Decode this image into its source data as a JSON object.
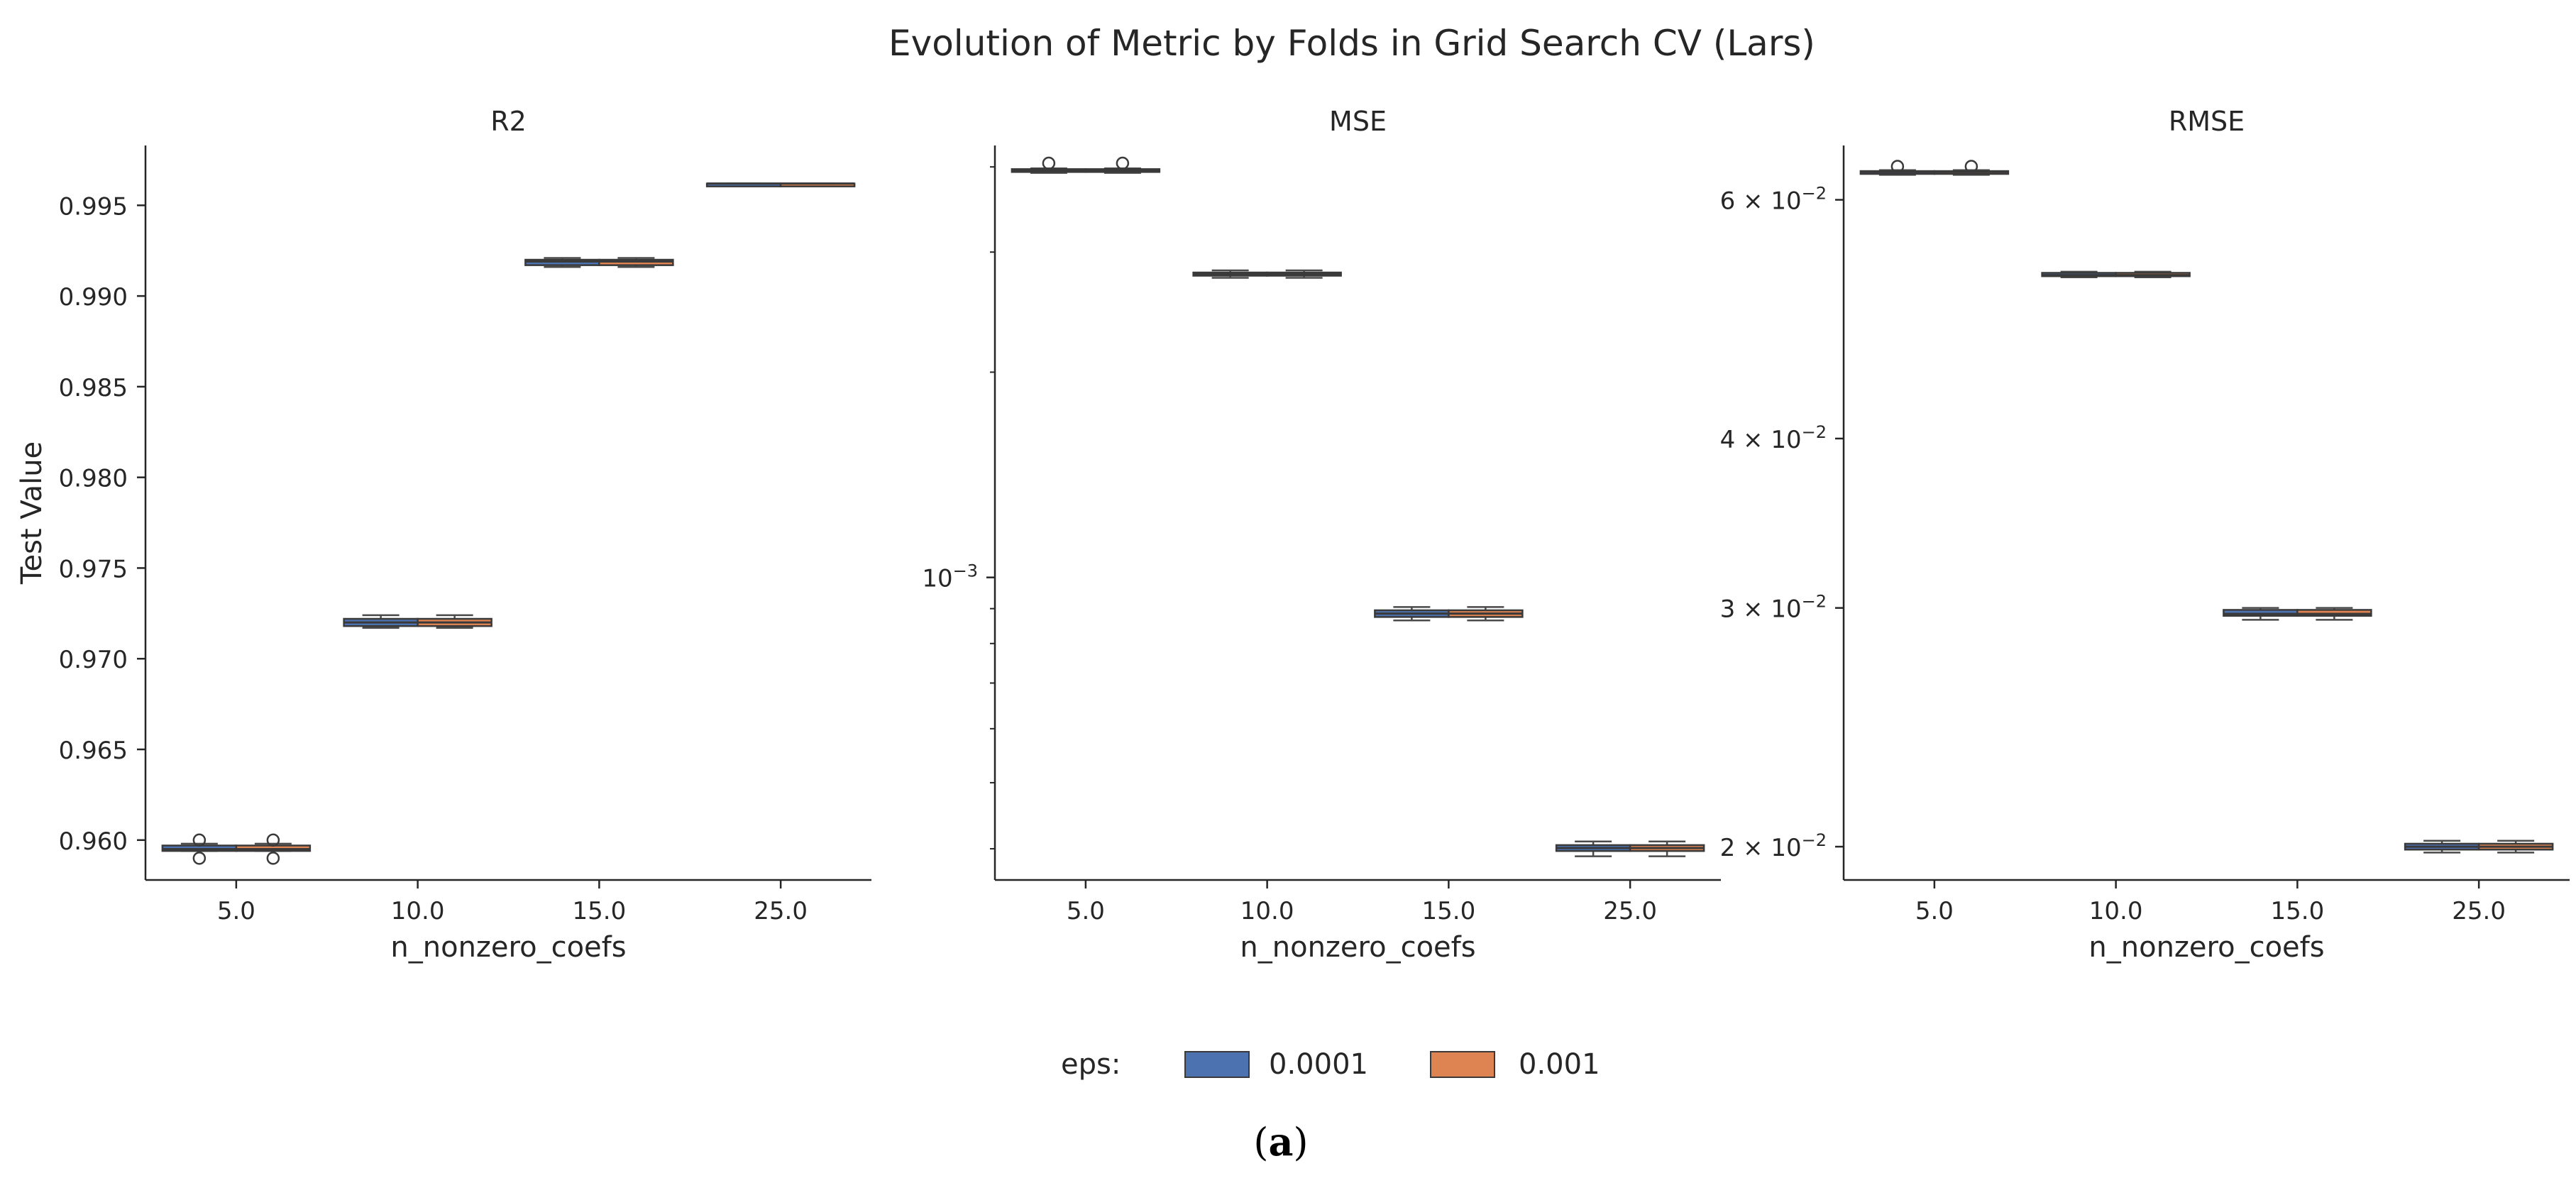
{
  "figure": {
    "title": "Evolution of Metric by Folds in Grid Search CV (Lars)",
    "caption_open": "(",
    "caption_letter": "a",
    "caption_close": ")"
  },
  "legend": {
    "title": "eps:",
    "entries": [
      {
        "label": "0.0001",
        "color": "#4c72b0"
      },
      {
        "label": "0.001",
        "color": "#dd8452"
      }
    ]
  },
  "colors": {
    "series_0": "#4c72b0",
    "series_1": "#dd8452",
    "axis": "#262626",
    "whisker": "#4a4a4a"
  },
  "chart_data": [
    {
      "type": "box",
      "title": "R2",
      "xlabel": "n_nonzero_coefs",
      "ylabel": "Test Value",
      "scale": "linear",
      "ylim": [
        0.9578,
        0.9983
      ],
      "categories": [
        "5.0",
        "10.0",
        "15.0",
        "25.0"
      ],
      "ticks": [
        {
          "v": 0.96,
          "label": "0.960"
        },
        {
          "v": 0.965,
          "label": "0.965"
        },
        {
          "v": 0.97,
          "label": "0.970"
        },
        {
          "v": 0.975,
          "label": "0.975"
        },
        {
          "v": 0.98,
          "label": "0.980"
        },
        {
          "v": 0.985,
          "label": "0.985"
        },
        {
          "v": 0.99,
          "label": "0.990"
        },
        {
          "v": 0.995,
          "label": "0.995"
        }
      ],
      "series": [
        {
          "name": "0.0001",
          "boxes": [
            {
              "wlo": 0.9594,
              "q1": 0.9594,
              "med": 0.9595,
              "q3": 0.9597,
              "whi": 0.9598,
              "outliers": [
                0.96,
                0.959
              ]
            },
            {
              "wlo": 0.9717,
              "q1": 0.9718,
              "med": 0.972,
              "q3": 0.9722,
              "whi": 0.9724,
              "outliers": []
            },
            {
              "wlo": 0.9916,
              "q1": 0.9917,
              "med": 0.9919,
              "q3": 0.992,
              "whi": 0.9921,
              "outliers": []
            },
            {
              "wlo": 0.9961,
              "q1": 0.9961,
              "med": 0.9962,
              "q3": 0.9962,
              "whi": 0.9962,
              "outliers": []
            }
          ]
        },
        {
          "name": "0.001",
          "boxes": [
            {
              "wlo": 0.9594,
              "q1": 0.9594,
              "med": 0.9595,
              "q3": 0.9597,
              "whi": 0.9598,
              "outliers": [
                0.96,
                0.959
              ]
            },
            {
              "wlo": 0.9717,
              "q1": 0.9718,
              "med": 0.972,
              "q3": 0.9722,
              "whi": 0.9724,
              "outliers": []
            },
            {
              "wlo": 0.9916,
              "q1": 0.9917,
              "med": 0.9919,
              "q3": 0.992,
              "whi": 0.9921,
              "outliers": []
            },
            {
              "wlo": 0.9961,
              "q1": 0.9961,
              "med": 0.9962,
              "q3": 0.9962,
              "whi": 0.9962,
              "outliers": []
            }
          ]
        }
      ]
    },
    {
      "type": "box",
      "title": "MSE",
      "xlabel": "n_nonzero_coefs",
      "ylabel": "",
      "scale": "log",
      "ylim": [
        0.00036,
        0.0043
      ],
      "categories": [
        "5.0",
        "10.0",
        "15.0",
        "25.0"
      ],
      "ticks": [
        {
          "v": 0.001,
          "label": "10",
          "sup": "−3"
        }
      ],
      "minor_ticks": [
        0.0004,
        0.0005,
        0.0006,
        0.0007,
        0.0008,
        0.0009,
        0.002,
        0.003,
        0.004
      ],
      "series": [
        {
          "name": "0.0001",
          "boxes": [
            {
              "wlo": 0.00392,
              "q1": 0.003935,
              "med": 0.00395,
              "q3": 0.00397,
              "whi": 0.00398,
              "outliers": [
                0.00405
              ]
            },
            {
              "wlo": 0.00275,
              "q1": 0.00277,
              "med": 0.002785,
              "q3": 0.0028,
              "whi": 0.00282,
              "outliers": []
            },
            {
              "wlo": 0.000865,
              "q1": 0.000875,
              "med": 0.000885,
              "q3": 0.000895,
              "whi": 0.000905,
              "outliers": []
            },
            {
              "wlo": 0.00039,
              "q1": 0.000397,
              "med": 0.000401,
              "q3": 0.000405,
              "whi": 0.00041,
              "outliers": []
            }
          ]
        },
        {
          "name": "0.001",
          "boxes": [
            {
              "wlo": 0.00392,
              "q1": 0.003935,
              "med": 0.00395,
              "q3": 0.00397,
              "whi": 0.00398,
              "outliers": [
                0.00405
              ]
            },
            {
              "wlo": 0.00275,
              "q1": 0.00277,
              "med": 0.002785,
              "q3": 0.0028,
              "whi": 0.00282,
              "outliers": []
            },
            {
              "wlo": 0.000865,
              "q1": 0.000875,
              "med": 0.000885,
              "q3": 0.000895,
              "whi": 0.000905,
              "outliers": []
            },
            {
              "wlo": 0.00039,
              "q1": 0.000397,
              "med": 0.000401,
              "q3": 0.000405,
              "whi": 0.00041,
              "outliers": []
            }
          ]
        }
      ]
    },
    {
      "type": "box",
      "title": "RMSE",
      "xlabel": "n_nonzero_coefs",
      "ylabel": "",
      "scale": "log",
      "ylim": [
        0.0189,
        0.0658
      ],
      "categories": [
        "5.0",
        "10.0",
        "15.0",
        "25.0"
      ],
      "ticks": [
        {
          "v": 0.02,
          "label": "2 × 10",
          "sup": "−2"
        },
        {
          "v": 0.03,
          "label": "3 × 10",
          "sup": "−2"
        },
        {
          "v": 0.04,
          "label": "4 × 10",
          "sup": "−2"
        },
        {
          "v": 0.06,
          "label": "6 × 10",
          "sup": "−2"
        }
      ],
      "minor_ticks": [],
      "series": [
        {
          "name": "0.0001",
          "boxes": [
            {
              "wlo": 0.0626,
              "q1": 0.0627,
              "med": 0.0629,
              "q3": 0.063,
              "whi": 0.0631,
              "outliers": [
                0.0635
              ]
            },
            {
              "wlo": 0.0526,
              "q1": 0.0527,
              "med": 0.0528,
              "q3": 0.053,
              "whi": 0.0531,
              "outliers": []
            },
            {
              "wlo": 0.0294,
              "q1": 0.0296,
              "med": 0.0297,
              "q3": 0.0299,
              "whi": 0.03,
              "outliers": []
            },
            {
              "wlo": 0.0198,
              "q1": 0.0199,
              "med": 0.02,
              "q3": 0.0201,
              "whi": 0.0202,
              "outliers": []
            }
          ]
        },
        {
          "name": "0.001",
          "boxes": [
            {
              "wlo": 0.0626,
              "q1": 0.0627,
              "med": 0.0629,
              "q3": 0.063,
              "whi": 0.0631,
              "outliers": [
                0.0635
              ]
            },
            {
              "wlo": 0.0526,
              "q1": 0.0527,
              "med": 0.0528,
              "q3": 0.053,
              "whi": 0.0531,
              "outliers": []
            },
            {
              "wlo": 0.0294,
              "q1": 0.0296,
              "med": 0.0297,
              "q3": 0.0299,
              "whi": 0.03,
              "outliers": []
            },
            {
              "wlo": 0.0198,
              "q1": 0.0199,
              "med": 0.02,
              "q3": 0.0201,
              "whi": 0.0202,
              "outliers": []
            }
          ]
        }
      ]
    }
  ]
}
